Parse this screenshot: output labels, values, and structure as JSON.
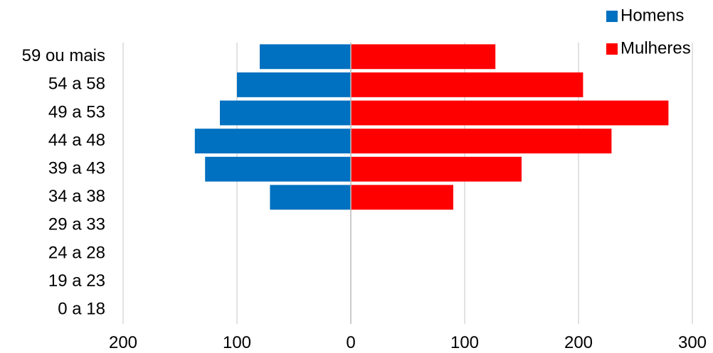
{
  "chart_data": {
    "type": "bar",
    "orientation": "horizontal",
    "layout": "population-pyramid",
    "categories": [
      "59 ou mais",
      "54 a 58",
      "49 a 53",
      "44 a 48",
      "39 a 43",
      "34 a 38",
      "29 a 33",
      "24 a 28",
      "19 a 23",
      "0 a 18"
    ],
    "series": [
      {
        "name": "Homens",
        "color": "#0070C0",
        "side": "left",
        "values": [
          80,
          100,
          115,
          137,
          128,
          71,
          0,
          0,
          0,
          0
        ]
      },
      {
        "name": "Mulheres",
        "color": "#FF0000",
        "side": "right",
        "values": [
          127,
          204,
          279,
          229,
          150,
          90,
          0,
          0,
          0,
          0
        ]
      }
    ],
    "xlim": [
      -200,
      300
    ],
    "x_ticks": [
      -200,
      -100,
      0,
      100,
      200,
      300
    ],
    "x_tick_labels": [
      "200",
      "100",
      "0",
      "100",
      "200",
      "300"
    ],
    "grid": "vertical",
    "legend": "top-right",
    "title": "",
    "xlabel": "",
    "ylabel": ""
  }
}
